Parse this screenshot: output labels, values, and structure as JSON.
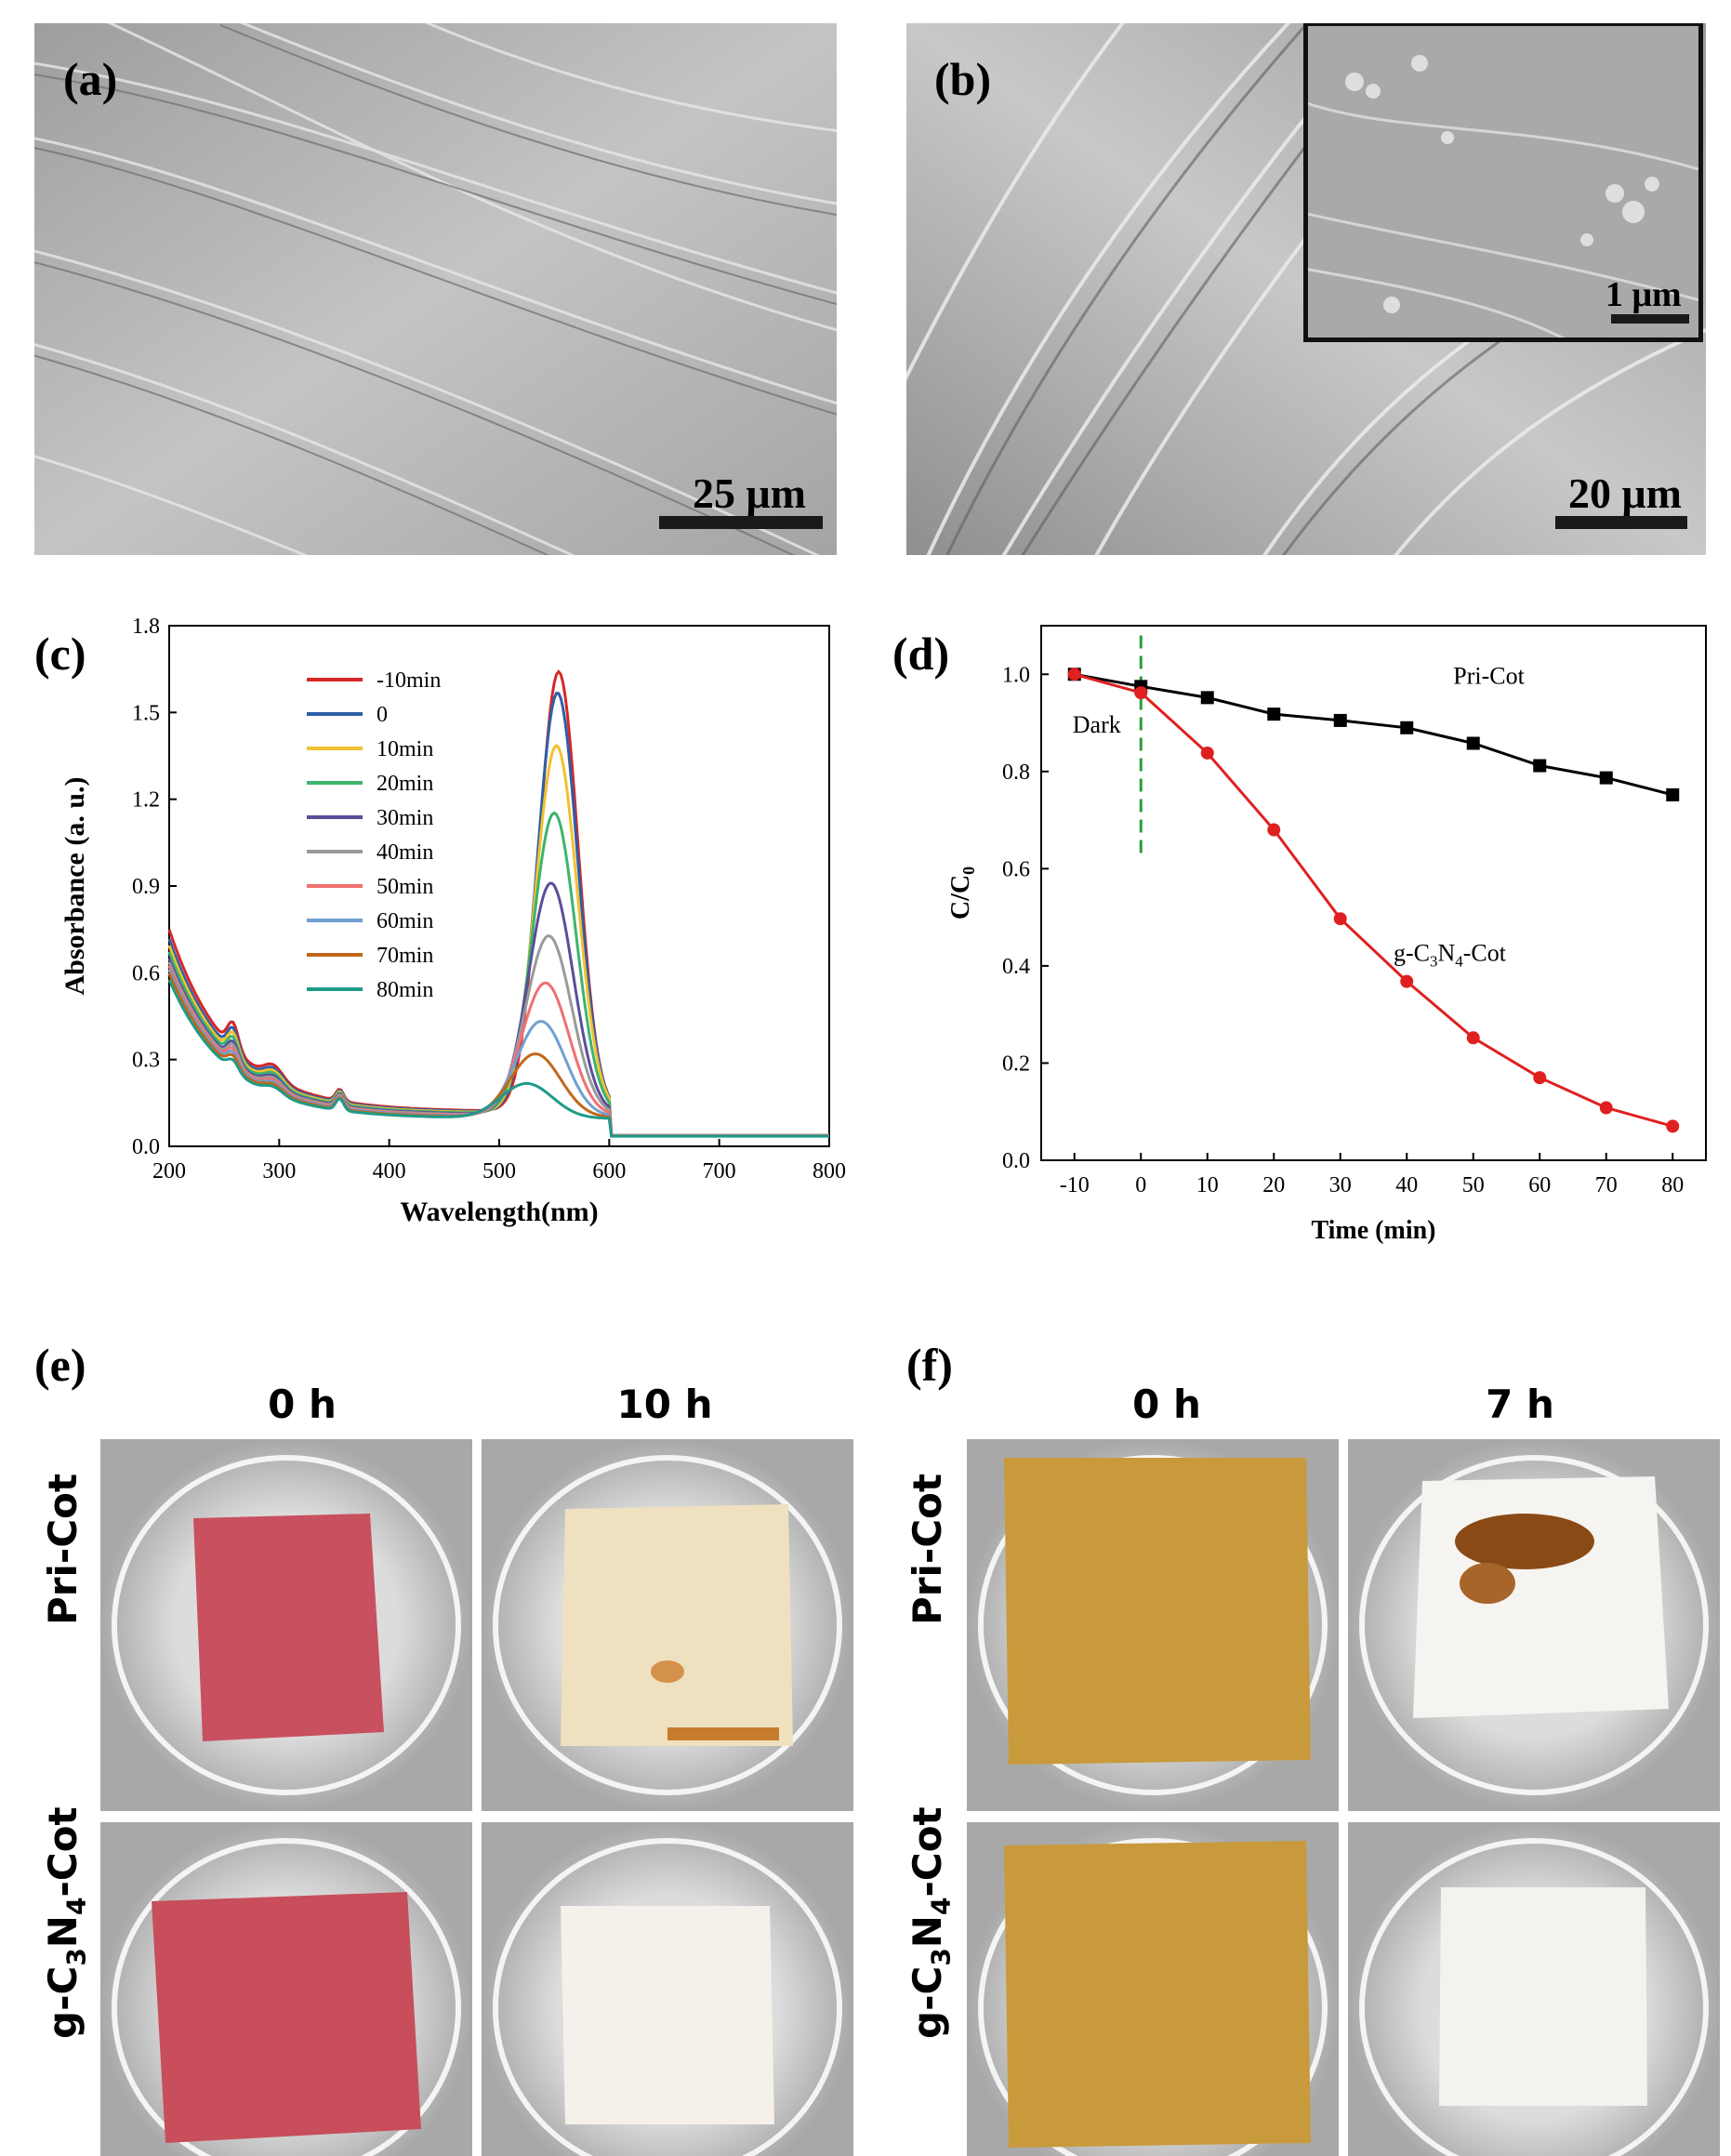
{
  "panels": {
    "a": {
      "label": "(a)",
      "scale_bar": "25 μm"
    },
    "b": {
      "label": "(b)",
      "scale_bar": "20 μm",
      "inset_scale_bar": "1 μm"
    },
    "c": {
      "label": "(c)"
    },
    "d": {
      "label": "(d)"
    },
    "e": {
      "label": "(e)",
      "col_headers": [
        "0 h",
        "10 h"
      ]
    },
    "f": {
      "label": "(f)",
      "col_headers": [
        "0 h",
        "7 h"
      ]
    }
  },
  "rows": {
    "pri": "Pri-Cot",
    "g_prefix": "g-C",
    "g_sub1": "3",
    "g_mid": "N",
    "g_sub2": "4",
    "g_suffix": "-Cot"
  },
  "chart_data": [
    {
      "type": "line",
      "panel": "(c)",
      "title": "",
      "xlabel": "Wavelength(nm)",
      "ylabel": "Absorbance (a. u.)",
      "xlim": [
        200,
        800
      ],
      "ylim": [
        0,
        1.8
      ],
      "xticks": [
        200,
        300,
        400,
        500,
        600,
        700,
        800
      ],
      "yticks": [
        "0.0",
        "0.3",
        "0.6",
        "0.9",
        "1.2",
        "1.5",
        "1.8"
      ],
      "series": [
        {
          "name": "-10min",
          "color": "#d62728",
          "peak": 1.57,
          "peak_x": 554,
          "base": 0.63
        },
        {
          "name": "0",
          "color": "#2e5fa8",
          "peak": 1.5,
          "peak_x": 553,
          "base": 0.6
        },
        {
          "name": "10min",
          "color": "#f2c12e",
          "peak": 1.32,
          "peak_x": 552,
          "base": 0.58
        },
        {
          "name": "20min",
          "color": "#3cb46e",
          "peak": 1.09,
          "peak_x": 550,
          "base": 0.56
        },
        {
          "name": "30min",
          "color": "#5a4e9a",
          "peak": 0.85,
          "peak_x": 547,
          "base": 0.54
        },
        {
          "name": "40min",
          "color": "#9a9a9a",
          "peak": 0.67,
          "peak_x": 545,
          "base": 0.53
        },
        {
          "name": "50min",
          "color": "#f07070",
          "peak": 0.51,
          "peak_x": 542,
          "base": 0.52
        },
        {
          "name": "60min",
          "color": "#6f9fd0",
          "peak": 0.38,
          "peak_x": 538,
          "base": 0.51
        },
        {
          "name": "70min",
          "color": "#c0681a",
          "peak": 0.27,
          "peak_x": 533,
          "base": 0.5
        },
        {
          "name": "80min",
          "color": "#1f9a8a",
          "peak": 0.17,
          "peak_x": 525,
          "base": 0.48
        }
      ]
    },
    {
      "type": "line",
      "panel": "(d)",
      "title": "",
      "xlabel": "Time (min)",
      "ylabel": "C/C0",
      "ylabel_main": "C/C",
      "ylabel_sub": "0",
      "xlim": [
        -15,
        85
      ],
      "ylim": [
        0,
        1.1
      ],
      "xticks": [
        -10,
        0,
        10,
        20,
        30,
        40,
        50,
        60,
        70,
        80
      ],
      "yticks": [
        "0.0",
        "0.2",
        "0.4",
        "0.6",
        "0.8",
        "1.0"
      ],
      "x": [
        -10,
        0,
        10,
        20,
        30,
        40,
        50,
        60,
        70,
        80
      ],
      "series": [
        {
          "name": "Pri-Cot",
          "color": "#000000",
          "marker": "square",
          "values": [
            1.0,
            0.975,
            0.952,
            0.918,
            0.905,
            0.89,
            0.858,
            0.812,
            0.787,
            0.752
          ]
        },
        {
          "name": "g-C3N4-Cot",
          "color": "#e02020",
          "marker": "circle",
          "values": [
            1.0,
            0.962,
            0.838,
            0.68,
            0.497,
            0.368,
            0.252,
            0.17,
            0.108,
            0.07
          ]
        }
      ],
      "annotations": {
        "dark": "Dark",
        "dark_line_x": 0,
        "pri_label": "Pri-Cot",
        "g_prefix": "g-C",
        "g_sub1": "3",
        "g_mid": "N",
        "g_sub2": "4",
        "g_suffix": "-Cot"
      }
    }
  ],
  "colors": {
    "sem_gray": "#b0b0b0",
    "fabric_red": "#c94f5c",
    "fabric_yellow": "#c79a3a",
    "fabric_white": "#eeeae2"
  }
}
